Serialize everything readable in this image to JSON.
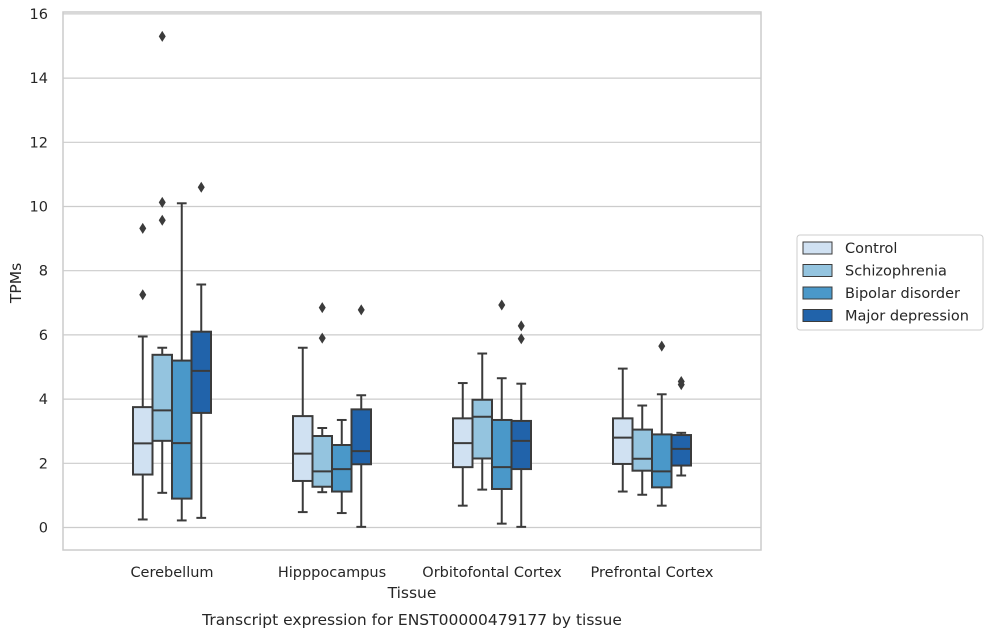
{
  "chart_data": {
    "type": "box",
    "xlabel": "Tissue",
    "ylabel": "TPMs",
    "caption": "Transcript expression for ENST00000479177 by tissue",
    "ylim": [
      -0.7,
      16.1
    ],
    "yticks": [
      0,
      2,
      4,
      6,
      8,
      10,
      12,
      14,
      16
    ],
    "grid": true,
    "legend_position": "right, outside plot",
    "categories": [
      "Cerebellum",
      "Hipppocampus",
      "Orbitofontal Cortex",
      "Prefrontal Cortex"
    ],
    "series": [
      {
        "name": "Control",
        "color": "#d0e1f2",
        "boxes": [
          {
            "whisker_low": 0.25,
            "q1": 1.65,
            "median": 2.62,
            "q3": 3.75,
            "whisker_high": 5.95,
            "outliers": [
              7.25,
              9.32
            ]
          },
          {
            "whisker_low": 0.48,
            "q1": 1.45,
            "median": 2.3,
            "q3": 3.47,
            "whisker_high": 5.6,
            "outliers": []
          },
          {
            "whisker_low": 0.68,
            "q1": 1.88,
            "median": 2.63,
            "q3": 3.4,
            "whisker_high": 4.5,
            "outliers": []
          },
          {
            "whisker_low": 1.12,
            "q1": 1.98,
            "median": 2.8,
            "q3": 3.4,
            "whisker_high": 4.95,
            "outliers": []
          }
        ]
      },
      {
        "name": "Schizophrenia",
        "color": "#94c4df",
        "boxes": [
          {
            "whisker_low": 1.08,
            "q1": 2.7,
            "median": 3.65,
            "q3": 5.38,
            "whisker_high": 5.6,
            "outliers": [
              9.57,
              10.13,
              15.3
            ]
          },
          {
            "whisker_low": 1.1,
            "q1": 1.27,
            "median": 1.75,
            "q3": 2.85,
            "whisker_high": 3.1,
            "outliers": [
              5.9,
              6.85
            ]
          },
          {
            "whisker_low": 1.18,
            "q1": 2.15,
            "median": 3.45,
            "q3": 3.98,
            "whisker_high": 5.42,
            "outliers": []
          },
          {
            "whisker_low": 1.02,
            "q1": 1.77,
            "median": 2.14,
            "q3": 3.05,
            "whisker_high": 3.8,
            "outliers": []
          }
        ]
      },
      {
        "name": "Bipolar disorder",
        "color": "#4a98c9",
        "boxes": [
          {
            "whisker_low": 0.22,
            "q1": 0.9,
            "median": 2.63,
            "q3": 5.2,
            "whisker_high": 10.1,
            "outliers": []
          },
          {
            "whisker_low": 0.45,
            "q1": 1.12,
            "median": 1.82,
            "q3": 2.57,
            "whisker_high": 3.35,
            "outliers": []
          },
          {
            "whisker_low": 0.12,
            "q1": 1.2,
            "median": 1.88,
            "q3": 3.35,
            "whisker_high": 4.65,
            "outliers": [
              6.93
            ]
          },
          {
            "whisker_low": 0.68,
            "q1": 1.25,
            "median": 1.75,
            "q3": 2.9,
            "whisker_high": 4.15,
            "outliers": [
              5.65
            ]
          }
        ]
      },
      {
        "name": "Major depression",
        "color": "#2163aa",
        "boxes": [
          {
            "whisker_low": 0.3,
            "q1": 3.57,
            "median": 4.88,
            "q3": 6.1,
            "whisker_high": 7.57,
            "outliers": [
              10.6
            ]
          },
          {
            "whisker_low": 0.02,
            "q1": 1.97,
            "median": 2.38,
            "q3": 3.68,
            "whisker_high": 4.12,
            "outliers": [
              6.78
            ]
          },
          {
            "whisker_low": 0.02,
            "q1": 1.82,
            "median": 2.7,
            "q3": 3.32,
            "whisker_high": 4.48,
            "outliers": [
              5.88,
              6.28
            ]
          },
          {
            "whisker_low": 1.62,
            "q1": 1.93,
            "median": 2.45,
            "q3": 2.88,
            "whisker_high": 2.95,
            "outliers": [
              4.45,
              4.55
            ]
          }
        ]
      }
    ]
  }
}
